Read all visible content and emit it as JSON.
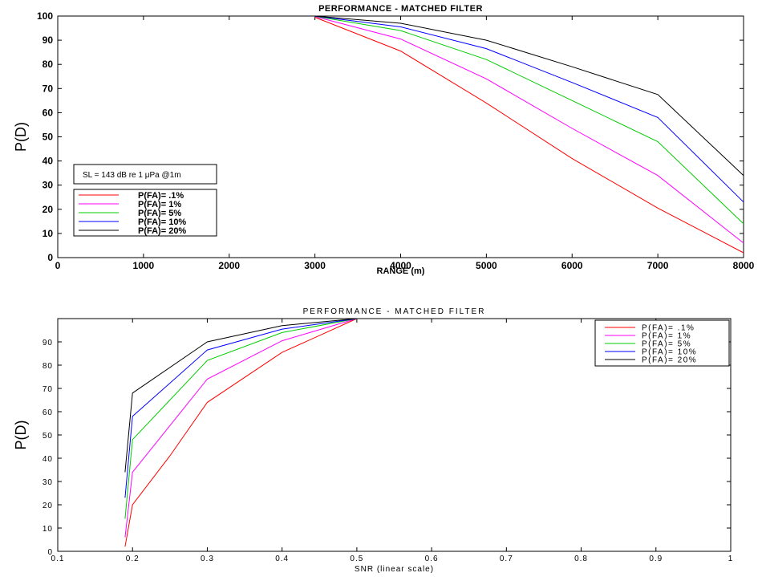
{
  "chart_data": [
    {
      "type": "line",
      "title": "PERFORMANCE - MATCHED FILTER",
      "xlabel": "RANGE (m)",
      "ylabel": "P(D)",
      "xlim": [
        0,
        8000
      ],
      "ylim": [
        0,
        100
      ],
      "xticks": [
        "0",
        "1000",
        "2000",
        "3000",
        "4000",
        "5000",
        "6000",
        "7000",
        "8000"
      ],
      "yticks": [
        "0",
        "10",
        "20",
        "30",
        "40",
        "50",
        "60",
        "70",
        "80",
        "90",
        "100"
      ],
      "x": [
        3000,
        4000,
        5000,
        6000,
        7000,
        8000
      ],
      "annotation": "SL = 143 dB re 1 μPa @1m",
      "legend_position": "left",
      "series": [
        {
          "name": "P(FA)=  .1%",
          "color": "#ff0000",
          "values": [
            99.5,
            85.5,
            64,
            41,
            20.5,
            2
          ]
        },
        {
          "name": "P(FA)=   1%",
          "color": "#ff00ff",
          "values": [
            99.8,
            90.5,
            74,
            53.5,
            34,
            6
          ]
        },
        {
          "name": "P(FA)=   5%",
          "color": "#00cc00",
          "values": [
            99.9,
            94,
            82,
            65,
            48,
            14
          ]
        },
        {
          "name": "P(FA)=  10%",
          "color": "#0000ff",
          "values": [
            100,
            95.5,
            86.5,
            72.5,
            58,
            23
          ]
        },
        {
          "name": "P(FA)=  20%",
          "color": "#000000",
          "values": [
            100,
            97,
            90,
            79,
            67.5,
            34
          ]
        }
      ]
    },
    {
      "type": "line",
      "title": "PERFORMANCE - MATCHED FILTER",
      "xlabel": "SNR (linear scale)",
      "ylabel": "P(D)",
      "xlim": [
        0.1,
        1
      ],
      "ylim": [
        0,
        100
      ],
      "xticks": [
        "0.1",
        "0.2",
        "0.3",
        "0.4",
        "0.5",
        "0.6",
        "0.7",
        "0.8",
        "0.9",
        "1"
      ],
      "yticks": [
        "0",
        "10",
        "20",
        "30",
        "40",
        "50",
        "60",
        "70",
        "80",
        "90"
      ],
      "legend_position": "top-right",
      "series": [
        {
          "name": "P(FA)=  .1%",
          "color": "#ff0000",
          "x": [
            0.19,
            0.2,
            0.25,
            0.3,
            0.4,
            0.5
          ],
          "values": [
            2,
            20,
            41,
            64,
            85.5,
            100
          ]
        },
        {
          "name": "P(FA)=   1%",
          "color": "#ff00ff",
          "x": [
            0.19,
            0.2,
            0.3,
            0.4,
            0.5
          ],
          "values": [
            6,
            34,
            74,
            90.5,
            100
          ]
        },
        {
          "name": "P(FA)=   5%",
          "color": "#00cc00",
          "x": [
            0.19,
            0.2,
            0.3,
            0.4,
            0.5
          ],
          "values": [
            14,
            48,
            82,
            94,
            100
          ]
        },
        {
          "name": "P(FA)=  10%",
          "color": "#0000ff",
          "x": [
            0.19,
            0.2,
            0.3,
            0.4,
            0.5
          ],
          "values": [
            23,
            58,
            86.5,
            95.5,
            100
          ]
        },
        {
          "name": "P(FA)=  20%",
          "color": "#000000",
          "x": [
            0.19,
            0.2,
            0.3,
            0.4,
            0.5
          ],
          "values": [
            34,
            68,
            90,
            97,
            100
          ]
        }
      ]
    }
  ]
}
